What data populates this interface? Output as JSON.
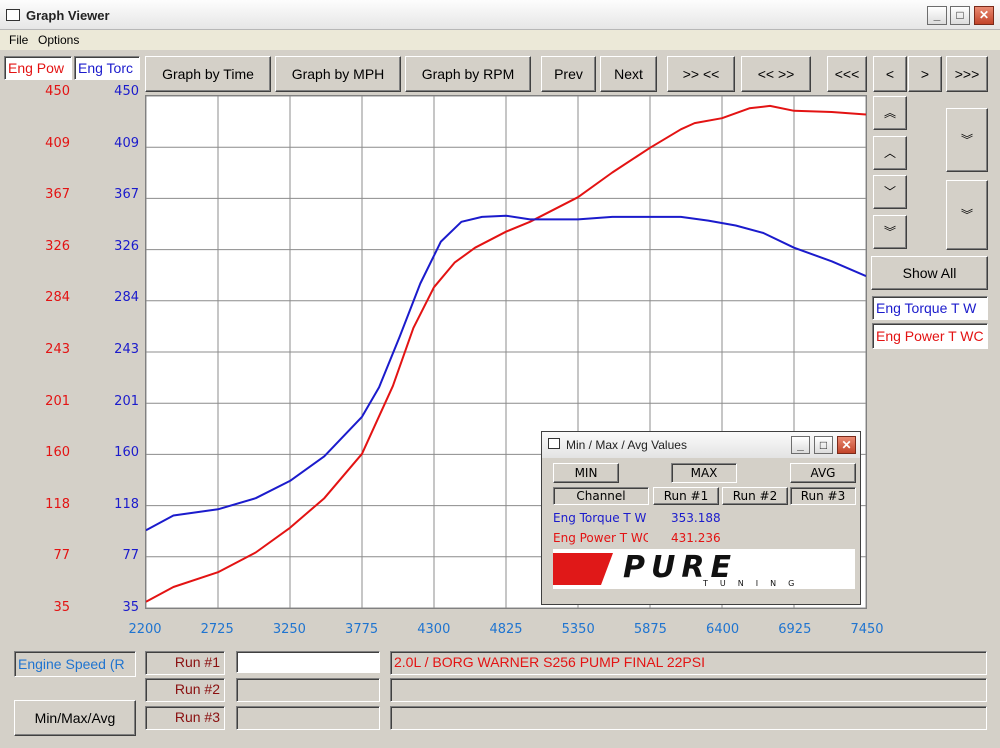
{
  "window": {
    "title": "Graph Viewer"
  },
  "menu": [
    "File",
    "Options"
  ],
  "channels": {
    "power_tab": "Eng Pow",
    "torque_tab": "Eng Torc"
  },
  "toolbar": {
    "by_time": "Graph by Time",
    "by_mph": "Graph by MPH",
    "by_rpm": "Graph by RPM",
    "prev": "Prev",
    "next": "Next",
    "zoom_in": ">> <<",
    "zoom_out": "<< >>",
    "scroll_first": "<<<",
    "scroll_left": "<",
    "scroll_right": ">",
    "scroll_last": ">>>"
  },
  "y_ticks": [
    "450",
    "409",
    "367",
    "326",
    "284",
    "243",
    "201",
    "160",
    "118",
    "77",
    "35"
  ],
  "x_ticks": [
    "2200",
    "2725",
    "3250",
    "3775",
    "4300",
    "4825",
    "5350",
    "5875",
    "6400",
    "6925",
    "7450"
  ],
  "right_panel": {
    "show_all": "Show All",
    "torque_item": "Eng Torque T W",
    "power_item": "Eng Power T WC",
    "vzoom_top": "︽",
    "vup": "︿",
    "vdown": "﹀",
    "vzoom_bottom": "︾"
  },
  "minmax": {
    "title": "Min / Max / Avg Values",
    "min": "MIN",
    "max": "MAX",
    "avg": "AVG",
    "channel": "Channel",
    "run1": "Run #1",
    "run2": "Run #2",
    "run3": "Run #3",
    "rows": [
      {
        "name": "Eng Torque T W",
        "value": "353.188"
      },
      {
        "name": "Eng Power T WC",
        "value": "431.236"
      }
    ],
    "logo_text": "PURE",
    "logo_sub": "TUNING"
  },
  "bottom": {
    "x_channel": "Engine Speed (R",
    "minmax_button": "Min/Max/Avg",
    "runs": [
      "Run #1",
      "Run #2",
      "Run #3"
    ],
    "run1_desc": "2.0L / BORG WARNER S256 PUMP FINAL 22PSI"
  },
  "colors": {
    "power": "#e31313",
    "torque": "#1b1bcc",
    "x_axis": "#1f74d0"
  },
  "chart_data": {
    "type": "line",
    "xlim": [
      2200,
      7450
    ],
    "ylim": [
      35,
      450
    ],
    "grid": true,
    "series": [
      {
        "name": "Eng Power T WC",
        "color": "#e31313",
        "x": [
          2200,
          2400,
          2725,
          3000,
          3250,
          3500,
          3775,
          4000,
          4150,
          4300,
          4450,
          4600,
          4825,
          5000,
          5350,
          5600,
          5875,
          6100,
          6200,
          6400,
          6600,
          6750,
          6925,
          7200,
          7450
        ],
        "y": [
          40,
          52,
          64,
          80,
          100,
          124,
          160,
          215,
          262,
          295,
          315,
          327,
          340,
          348,
          368,
          388,
          408,
          423,
          428,
          432,
          440,
          442,
          438,
          437,
          435
        ]
      },
      {
        "name": "Eng Torque T W",
        "color": "#1b1bcc",
        "x": [
          2200,
          2400,
          2725,
          3000,
          3250,
          3500,
          3775,
          3900,
          4050,
          4200,
          4350,
          4500,
          4650,
          4825,
          5000,
          5350,
          5600,
          5875,
          6100,
          6300,
          6500,
          6700,
          6925,
          7200,
          7450
        ],
        "y": [
          98,
          110,
          115,
          124,
          138,
          158,
          190,
          214,
          255,
          298,
          332,
          348,
          352,
          353,
          350,
          350,
          352,
          352,
          352,
          349,
          345,
          339,
          327,
          316,
          304
        ]
      }
    ]
  }
}
